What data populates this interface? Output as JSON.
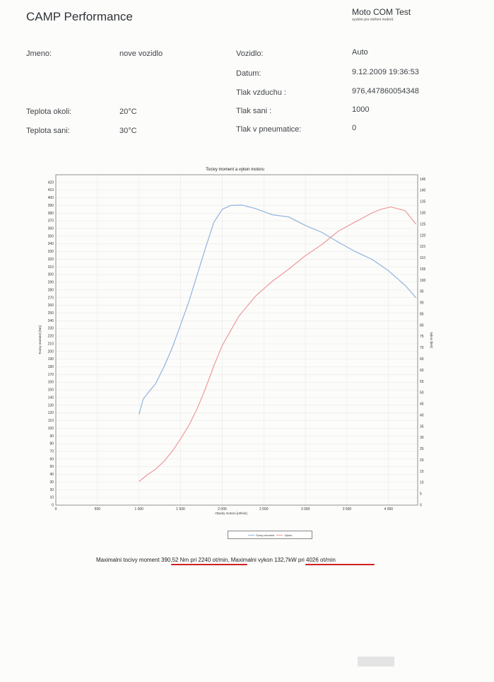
{
  "header": {
    "title": "CAMP Performance",
    "brand_name": "Moto COM Test",
    "brand_subtitle": "systém pro měření motorů"
  },
  "info": {
    "jmeno_label": "Jmeno:",
    "jmeno_value": "nove vozidlo",
    "teplota_okoli_label": "Teplota okoli:",
    "teplota_okoli_value": "20°C",
    "teplota_sani_label": "Teplota sani:",
    "teplota_sani_value": "30°C",
    "vozidlo_label": "Vozidlo:",
    "vozidlo_value": "Auto",
    "datum_label": "Datum:",
    "datum_value": "9.12.2009 19:36:53",
    "tlak_vzduchu_label": "Tlak vzduchu :",
    "tlak_vzduchu_value": "976,447860054348",
    "tlak_sani_label": "Tlak sani :",
    "tlak_sani_value": "1000",
    "tlak_pneu_label": "Tlak v pneumatice:",
    "tlak_pneu_value": "0"
  },
  "summary": {
    "torque_prefix": "Maximalni tocivy moment ",
    "torque_value": "390,52 Nm pri 2240 ot/min",
    "separator": ",  Maximalni vykon ",
    "power_value": "132,7kW pri 4026 ot/min",
    "underline_color": "#d22020"
  },
  "chart_data": {
    "type": "line",
    "title": "Tocivy moment a vykon motoru",
    "xlabel": "Otacky motoru [ot/min]",
    "ylabel": "Tocivy moment [Nm]",
    "y2label": "Vykon [kW]",
    "xlim": [
      0,
      4350
    ],
    "ylim": [
      0,
      430
    ],
    "y2lim": [
      0,
      147
    ],
    "x_ticks": [
      0,
      500,
      1000,
      1500,
      2000,
      2500,
      3000,
      3500,
      4000
    ],
    "x_tick_labels": [
      "0",
      "500",
      "1 000",
      "1 500",
      "2 000",
      "2 500",
      "3 000",
      "3 500",
      "4 000"
    ],
    "y_ticks": [
      0,
      10,
      20,
      30,
      40,
      50,
      60,
      70,
      80,
      90,
      100,
      110,
      120,
      130,
      140,
      150,
      160,
      170,
      180,
      190,
      200,
      210,
      220,
      230,
      240,
      250,
      260,
      270,
      280,
      290,
      300,
      310,
      320,
      330,
      340,
      350,
      360,
      370,
      380,
      390,
      400,
      410,
      420
    ],
    "y2_ticks": [
      0,
      5,
      10,
      15,
      20,
      25,
      30,
      35,
      40,
      45,
      50,
      55,
      60,
      65,
      70,
      75,
      80,
      85,
      90,
      95,
      100,
      105,
      110,
      115,
      120,
      125,
      130,
      135,
      140,
      145
    ],
    "grid": true,
    "legend_position": "bottom-center",
    "series": [
      {
        "name": "Tocivy moment",
        "axis": "left",
        "color": "#8fb3df",
        "x": [
          1000,
          1050,
          1100,
          1200,
          1300,
          1400,
          1500,
          1600,
          1700,
          1800,
          1900,
          2000,
          2100,
          2240,
          2400,
          2600,
          2800,
          3000,
          3200,
          3400,
          3600,
          3800,
          4000,
          4200,
          4330
        ],
        "y": [
          118,
          138,
          145,
          158,
          180,
          205,
          235,
          265,
          300,
          335,
          368,
          385,
          390,
          390.5,
          386,
          378,
          375,
          364,
          355,
          342,
          330,
          320,
          305,
          286,
          270
        ]
      },
      {
        "name": "Vykon",
        "axis": "right",
        "color": "#ec9a9a",
        "x": [
          1000,
          1100,
          1200,
          1300,
          1400,
          1500,
          1600,
          1700,
          1800,
          1900,
          2000,
          2200,
          2400,
          2600,
          2800,
          3000,
          3200,
          3400,
          3600,
          3800,
          3900,
          4026,
          4200,
          4330
        ],
        "y": [
          10.5,
          13.5,
          16,
          19.5,
          24,
          29.5,
          35.5,
          43,
          52,
          62,
          71,
          84,
          93,
          99.5,
          105,
          111,
          116,
          122,
          126,
          130,
          131.5,
          132.7,
          131,
          125
        ]
      }
    ]
  }
}
